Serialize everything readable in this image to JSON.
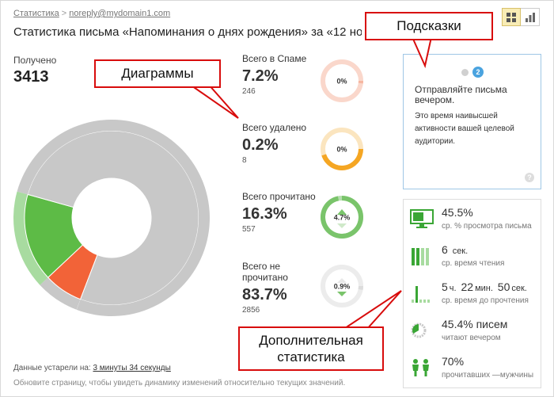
{
  "breadcrumb": {
    "root": "Статистика",
    "separator": ">",
    "current": "noreply@mydomain1.com"
  },
  "page": {
    "title": "Статистика письма «Напоминания о днях рождения» за «12 ноября»"
  },
  "view_toggle": {
    "active": "grid",
    "grid_icon": "grid-icon",
    "chart_icon": "bar-chart-icon"
  },
  "received": {
    "label": "Получено",
    "value": "3413"
  },
  "big_donut": {
    "type": "pie",
    "slices": [
      {
        "name": "Спам",
        "value": 7.2,
        "color": "#f26338"
      },
      {
        "name": "Прочитано",
        "value": 16.3,
        "color": "#5dbb46"
      },
      {
        "name": "Не прочитано",
        "value": 76.5,
        "color": "#c8c8c8"
      }
    ],
    "outer_ring_color": "#a8dba0",
    "start_angle_deg": 201
  },
  "stats": [
    {
      "label": "Всего в Спаме",
      "value": "7.2%",
      "count": "246",
      "donut_label": "0%",
      "fraction": 0.02,
      "color": "#f6b6a0",
      "track": "#f6b6a0",
      "arrow": ""
    },
    {
      "label": "Всего удалено",
      "value": "0.2%",
      "count": "8",
      "donut_label": "0%",
      "fraction": 0.45,
      "color": "#f5a623",
      "track": "#f8cf8a",
      "arrow": ""
    },
    {
      "label": "Всего прочитано",
      "value": "16.3%",
      "count": "557",
      "donut_label": "4.7%",
      "fraction": 0.97,
      "color": "#7ac46b",
      "track": "#7ac46b",
      "arrow": "up"
    },
    {
      "label": "Всего не прочитано",
      "value": "83.7%",
      "count": "2856",
      "donut_label": "0.9%",
      "fraction": 0.03,
      "color": "#dcdcdc",
      "track": "#dcdcdc",
      "arrow": "down"
    }
  ],
  "hints": {
    "current_page": "2",
    "title": "Отправляйте письма вечером.",
    "text": "Это время наивысшей активности вашей целевой аудитории.",
    "help": "?"
  },
  "extra": [
    {
      "icon": "monitor-icon",
      "value": "45.5%",
      "caption": "ср. % просмотра письма"
    },
    {
      "icon": "reading-bars-icon",
      "value": "6",
      "unit": "сек.",
      "caption": "ср. время чтения"
    },
    {
      "icon": "reading-delay-bars-icon",
      "parts": [
        "5",
        "ч.",
        "22",
        "мин.",
        "50",
        "сек."
      ],
      "caption": "ср. время до прочтения"
    },
    {
      "icon": "evening-clock-icon",
      "value": "45.4% писем",
      "caption": "читают вечером"
    },
    {
      "icon": "people-icon",
      "value": "70%",
      "caption": "прочитавших —мужчины"
    }
  ],
  "footer": {
    "stale_label": "Данные устарели на:",
    "stale_link": "3 минуты 34 секунды",
    "refresh_note": "Обновите страницу, чтобы увидеть динамику изменений относительно текущих значений."
  },
  "callouts": {
    "diagrams": "Диаграммы",
    "hints": "Подсказки",
    "extra_line1": "Дополнительная",
    "extra_line2": "статистика"
  },
  "colors": {
    "accent_blue": "#4aa3df",
    "callout_red": "#d80c0c"
  }
}
